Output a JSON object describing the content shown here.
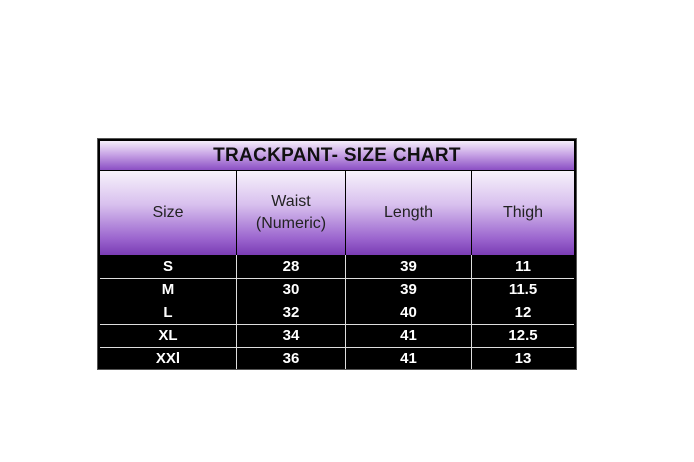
{
  "title": "TRACKPANT- SIZE CHART",
  "headers": [
    "Size",
    "Waist (Numeric)",
    "Length",
    "Thigh"
  ],
  "rows": [
    [
      "S",
      "28",
      "39",
      "11"
    ],
    [
      "M",
      "30",
      "39",
      "11.5"
    ],
    [
      "L",
      "32",
      "40",
      "12"
    ],
    [
      "XL",
      "34",
      "41",
      "12.5"
    ],
    [
      "XXl",
      "36",
      "41",
      "13"
    ]
  ],
  "colors": {
    "header_purple": "#7a3cb4",
    "body_bg": "#000000",
    "body_text": "#ffffff"
  }
}
